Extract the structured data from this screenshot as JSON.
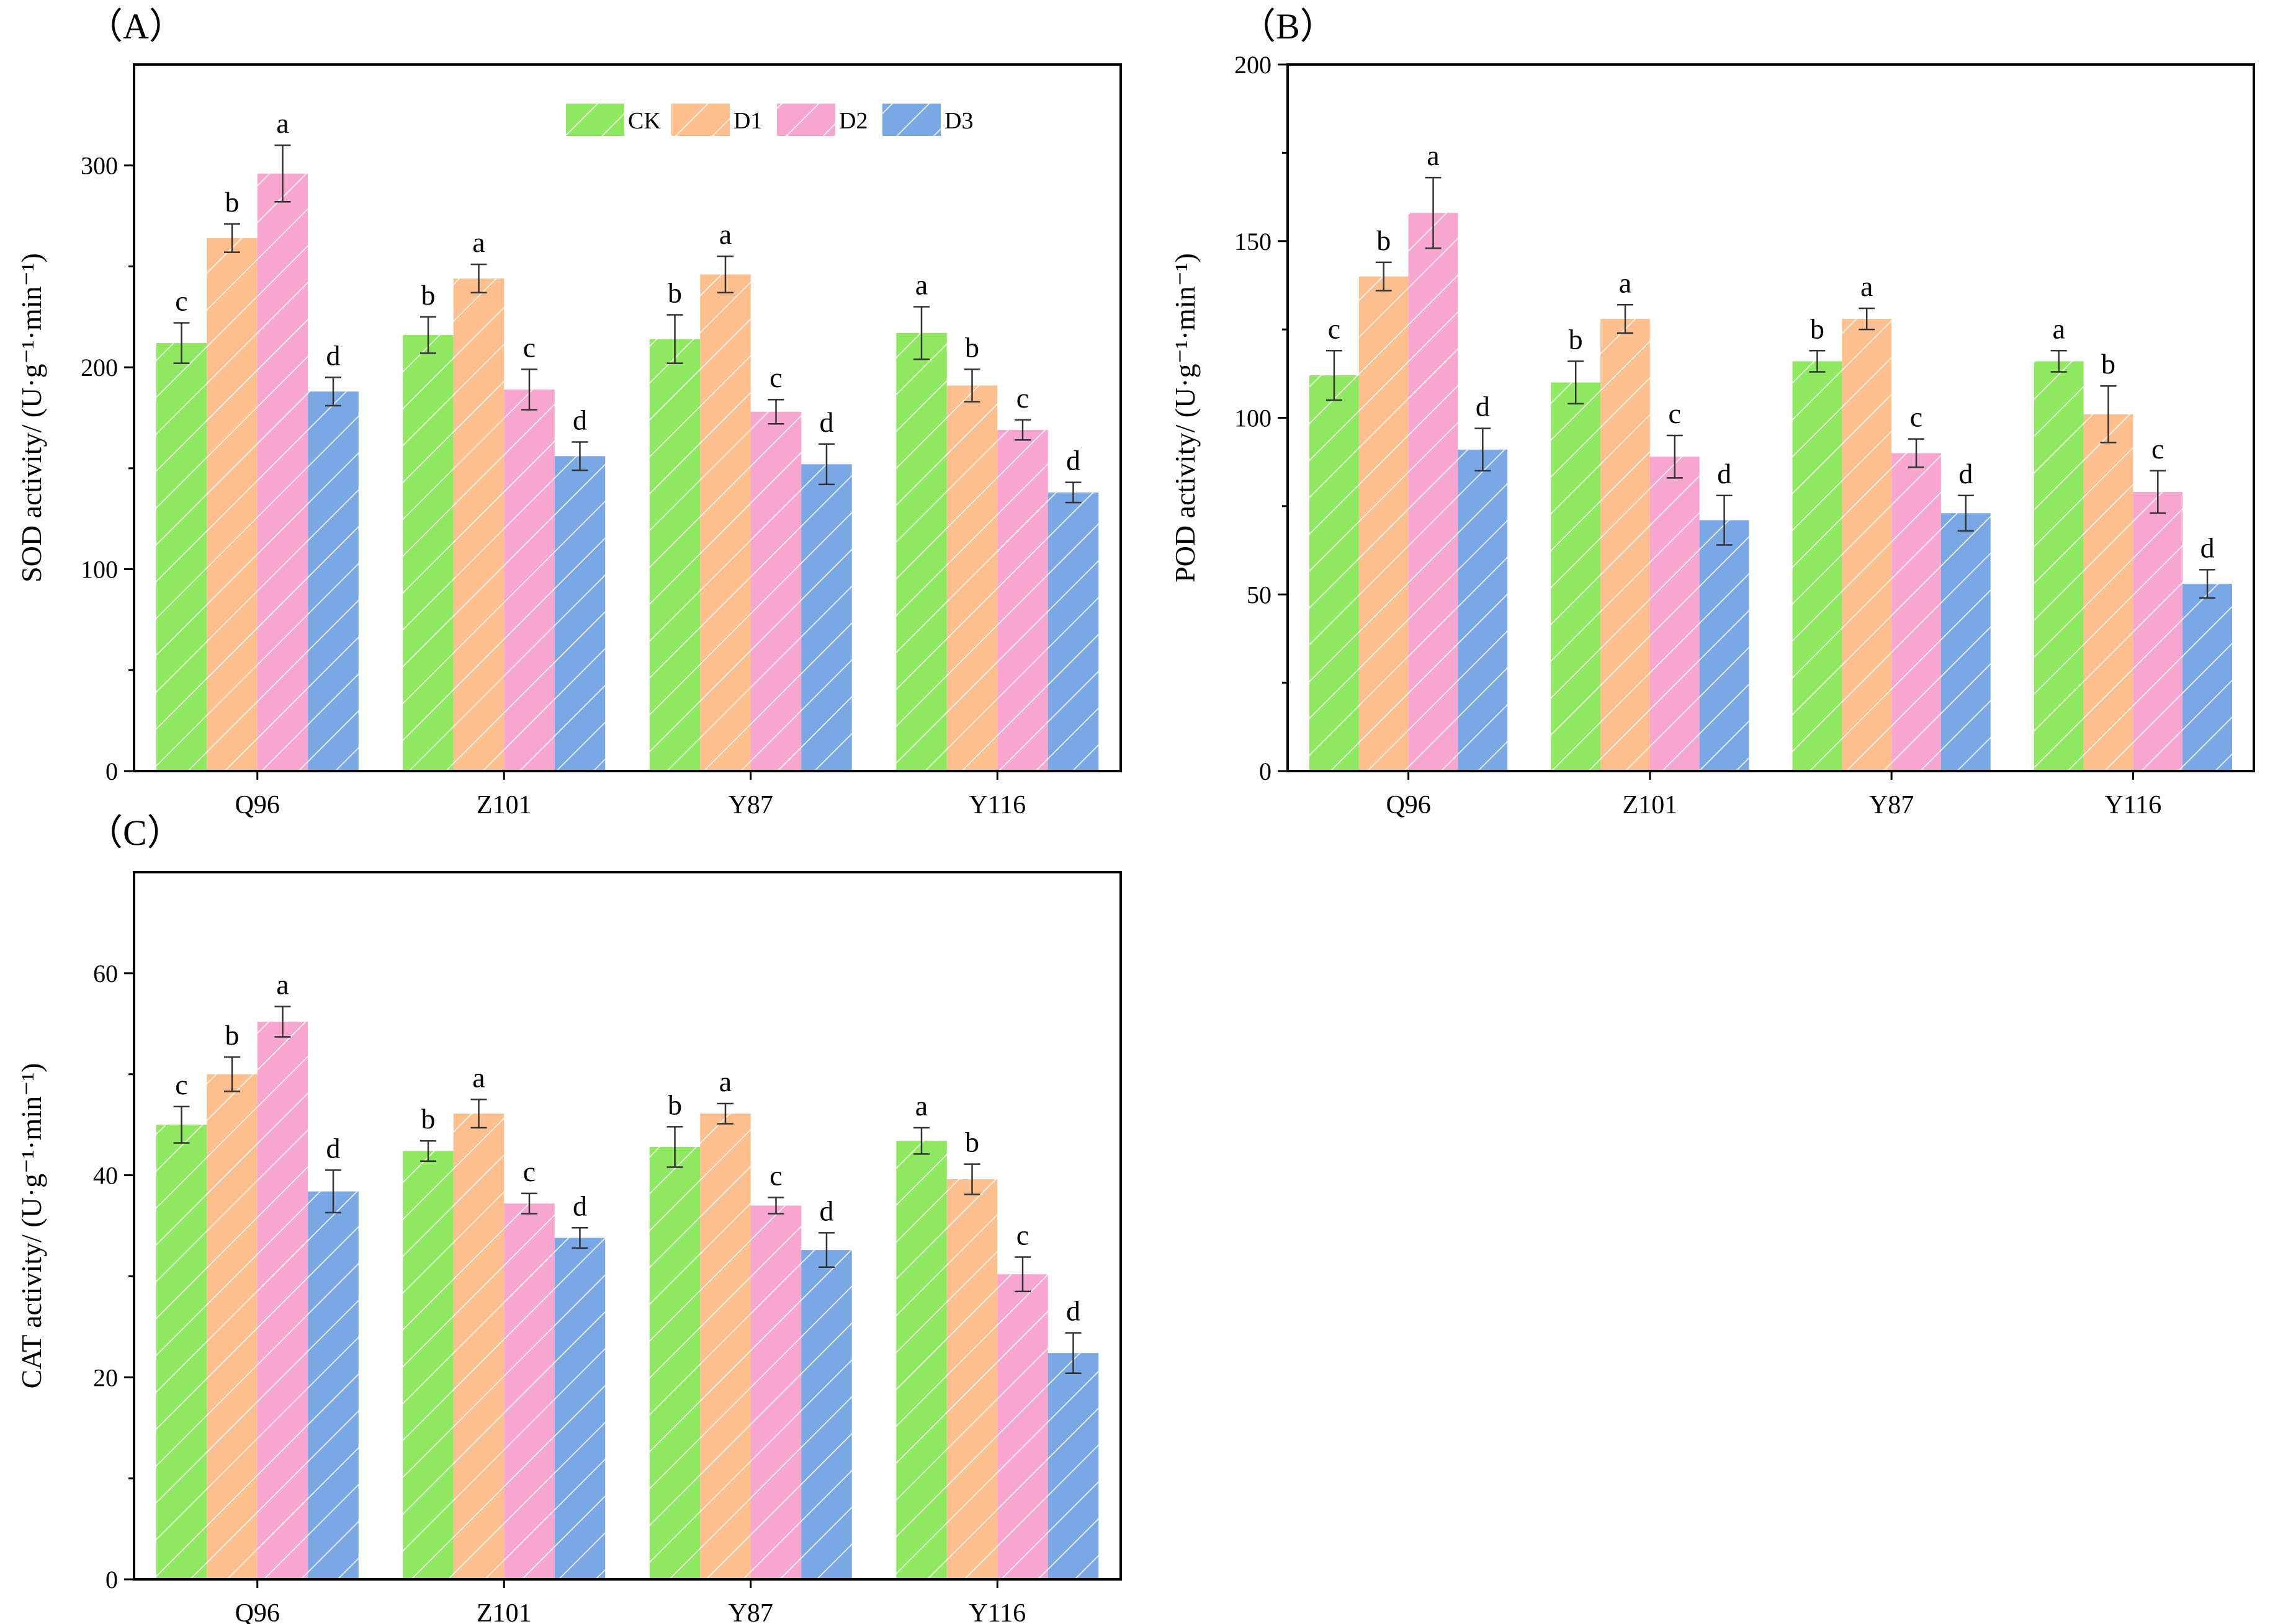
{
  "figure": {
    "legend_entries": [
      "CK",
      "D1",
      "D2",
      "D3"
    ],
    "series_colors": {
      "CK": "#8ee860",
      "D1": "#fcbf8d",
      "D2": "#f7a7cf",
      "D3": "#7aa8e4"
    }
  },
  "chart_data": [
    {
      "type": "bar",
      "panel_label": "（A）",
      "ylabel": "SOD activity/ (U·g⁻¹·min⁻¹)",
      "categories": [
        "Q96",
        "Z101",
        "Y87",
        "Y116"
      ],
      "ylim": [
        0,
        350
      ],
      "yticks": [
        0,
        100,
        200,
        300
      ],
      "legend": true,
      "series": [
        {
          "name": "CK",
          "values": [
            212,
            216,
            214,
            217
          ],
          "errors": [
            10,
            9,
            12,
            13
          ],
          "letters": [
            "c",
            "b",
            "b",
            "a"
          ]
        },
        {
          "name": "D1",
          "values": [
            264,
            244,
            246,
            191
          ],
          "errors": [
            7,
            7,
            9,
            8
          ],
          "letters": [
            "b",
            "a",
            "a",
            "b"
          ]
        },
        {
          "name": "D2",
          "values": [
            296,
            189,
            178,
            169
          ],
          "errors": [
            14,
            10,
            6,
            5
          ],
          "letters": [
            "a",
            "c",
            "c",
            "c"
          ]
        },
        {
          "name": "D3",
          "values": [
            188,
            156,
            152,
            138
          ],
          "errors": [
            7,
            7,
            10,
            5
          ],
          "letters": [
            "d",
            "d",
            "d",
            "d"
          ]
        }
      ]
    },
    {
      "type": "bar",
      "panel_label": "（B）",
      "ylabel": "POD activity/ (U·g⁻¹·min⁻¹)",
      "categories": [
        "Q96",
        "Z101",
        "Y87",
        "Y116"
      ],
      "ylim": [
        0,
        200
      ],
      "yticks": [
        0,
        50,
        100,
        150,
        200
      ],
      "legend": false,
      "series": [
        {
          "name": "CK",
          "values": [
            112,
            110,
            116,
            116
          ],
          "errors": [
            7,
            6,
            3,
            3
          ],
          "letters": [
            "c",
            "b",
            "b",
            "a"
          ]
        },
        {
          "name": "D1",
          "values": [
            140,
            128,
            128,
            101
          ],
          "errors": [
            4,
            4,
            3,
            8
          ],
          "letters": [
            "b",
            "a",
            "a",
            "b"
          ]
        },
        {
          "name": "D2",
          "values": [
            158,
            89,
            90,
            79
          ],
          "errors": [
            10,
            6,
            4,
            6
          ],
          "letters": [
            "a",
            "c",
            "c",
            "c"
          ]
        },
        {
          "name": "D3",
          "values": [
            91,
            71,
            73,
            53
          ],
          "errors": [
            6,
            7,
            5,
            4
          ],
          "letters": [
            "d",
            "d",
            "d",
            "d"
          ]
        }
      ]
    },
    {
      "type": "bar",
      "panel_label": "（C）",
      "ylabel": "CAT activity/ (U·g⁻¹·min⁻¹)",
      "categories": [
        "Q96",
        "Z101",
        "Y87",
        "Y116"
      ],
      "ylim": [
        0,
        70
      ],
      "yticks": [
        0,
        20,
        40,
        60
      ],
      "legend": false,
      "series": [
        {
          "name": "CK",
          "values": [
            45.0,
            42.4,
            42.8,
            43.4
          ],
          "errors": [
            1.8,
            1.0,
            2.0,
            1.3
          ],
          "letters": [
            "c",
            "b",
            "b",
            "a"
          ]
        },
        {
          "name": "D1",
          "values": [
            50.0,
            46.1,
            46.1,
            39.6
          ],
          "errors": [
            1.7,
            1.4,
            1.0,
            1.5
          ],
          "letters": [
            "b",
            "a",
            "a",
            "b"
          ]
        },
        {
          "name": "D2",
          "values": [
            55.2,
            37.2,
            37.0,
            30.2
          ],
          "errors": [
            1.5,
            1.0,
            0.8,
            1.7
          ],
          "letters": [
            "a",
            "c",
            "c",
            "c"
          ]
        },
        {
          "name": "D3",
          "values": [
            38.4,
            33.8,
            32.6,
            22.4
          ],
          "errors": [
            2.1,
            1.0,
            1.7,
            2.0
          ],
          "letters": [
            "d",
            "d",
            "d",
            "d"
          ]
        }
      ]
    }
  ]
}
